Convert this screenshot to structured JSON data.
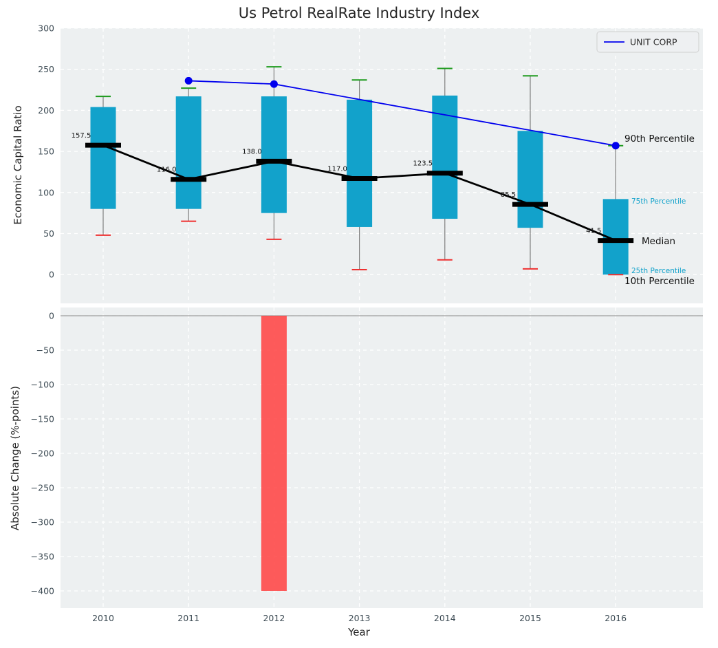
{
  "title": "Us Petrol RealRate Industry Index",
  "legend": {
    "label": "UNIT CORP"
  },
  "annotations": {
    "p90": "90th Percentile",
    "p75": "75th Percentile",
    "median": "Median",
    "p25": "25th Percentile",
    "p10": "10th Percentile"
  },
  "colors": {
    "axes_bg": "#edf0f1",
    "grid": "#ffffff",
    "tick": "#3d4b54",
    "box": "#12a2cb",
    "median": "#000000",
    "cap_high": "#1e9b1e",
    "cap_low": "#ef3030",
    "unit_corp": "#0000ee",
    "neg_bar": "#ff4040",
    "text": "#111111"
  },
  "chart_data": [
    {
      "type": "box-whisker",
      "title": "Us Petrol RealRate Industry Index",
      "xlabel": "Year",
      "ylabel": "Economic Capital Ratio",
      "ylim": [
        -35,
        300
      ],
      "yticks": [
        300,
        250,
        200,
        150,
        100,
        50,
        0
      ],
      "grid": true,
      "legend_position": "upper right",
      "categories": [
        "2010",
        "2011",
        "2012",
        "2013",
        "2014",
        "2015",
        "2016"
      ],
      "series": [
        {
          "name": "90th Percentile",
          "values": [
            217,
            227,
            253,
            237,
            251,
            242,
            157
          ]
        },
        {
          "name": "75th Percentile",
          "values": [
            204,
            217,
            217,
            213,
            218,
            175,
            92
          ]
        },
        {
          "name": "Median",
          "values": [
            157.5,
            116.0,
            138.0,
            117.0,
            123.5,
            85.5,
            41.5
          ]
        },
        {
          "name": "25th Percentile",
          "values": [
            80,
            80,
            75,
            58,
            68,
            57,
            0
          ]
        },
        {
          "name": "10th Percentile",
          "values": [
            48,
            65,
            43,
            6,
            18,
            7,
            0
          ]
        }
      ],
      "median_labels": [
        "157.5",
        "116.0",
        "138.0",
        "117.0",
        "123.5",
        "85.5",
        "41.5"
      ],
      "company_series": {
        "name": "UNIT CORP",
        "x": [
          "2011",
          "2012",
          "2016"
        ],
        "values": [
          236,
          232,
          157
        ]
      }
    },
    {
      "type": "bar",
      "xlabel": "Year",
      "ylabel": "Absolute Change (%-points)",
      "ylim": [
        -425,
        12
      ],
      "yticks": [
        0,
        -50,
        -100,
        -150,
        -200,
        -250,
        -300,
        -350,
        -400
      ],
      "grid": true,
      "categories": [
        "2010",
        "2011",
        "2012",
        "2013",
        "2014",
        "2015",
        "2016"
      ],
      "values": [
        0,
        0,
        -400,
        0,
        0,
        0,
        0
      ],
      "bar_color": "#ff4040"
    }
  ]
}
